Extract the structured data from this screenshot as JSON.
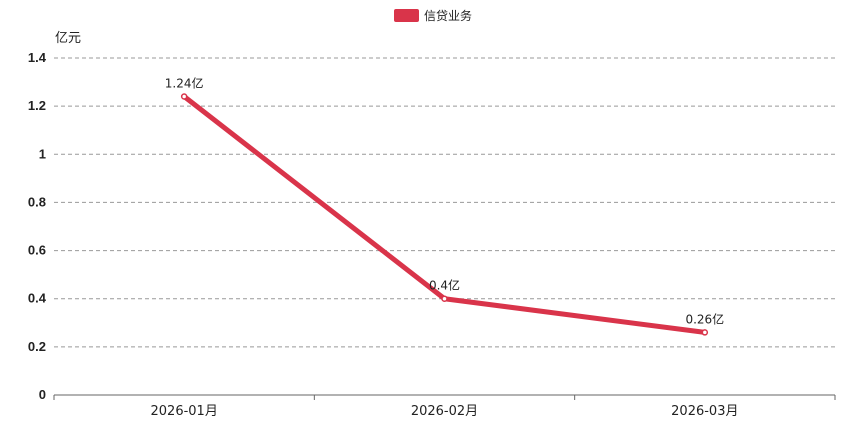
{
  "chart_data": {
    "type": "line",
    "categories": [
      "2026-01月",
      "2026-02月",
      "2026-03月"
    ],
    "series": [
      {
        "name": "信贷业务",
        "values": [
          1.24,
          0.4,
          0.26
        ],
        "labels": [
          "1.24亿",
          "0.4亿",
          "0.26亿"
        ],
        "color": "#d9344a"
      }
    ],
    "ylabel": "亿元",
    "ylim": [
      0,
      1.4
    ],
    "yticks": [
      "0",
      "0.2",
      "0.4",
      "0.6",
      "0.8",
      "1",
      "1.2",
      "1.4"
    ],
    "grid": true,
    "legend_position": "top-center"
  }
}
